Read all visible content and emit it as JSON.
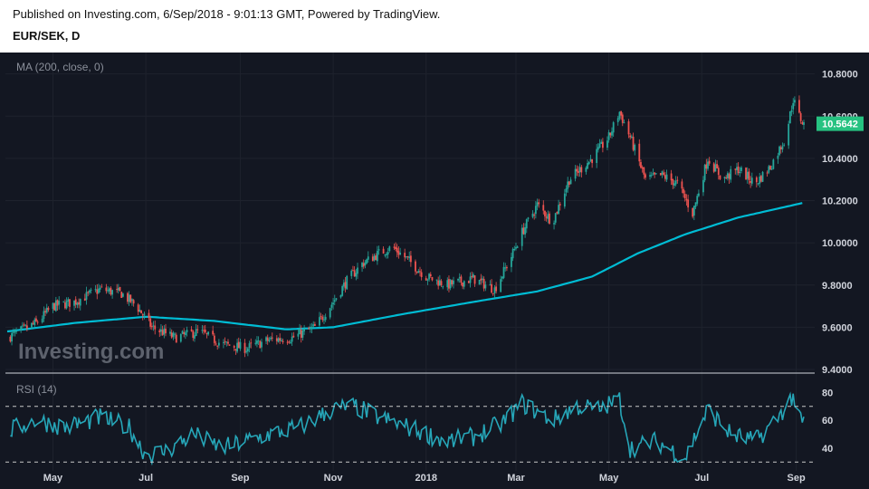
{
  "header": {
    "published": "Published on Investing.com, 6/Sep/2018 - 9:01:13 GMT, Powered by TradingView.",
    "symbol": "EUR/SEK, D"
  },
  "watermark": "Investing.com",
  "colors": {
    "background": "#131722",
    "grid": "#1e222d",
    "up": "#26a69a",
    "down": "#ef5350",
    "ma": "#00bcd4",
    "rsi": "#26a6b8",
    "price_tag": "#26c281",
    "text": "#d1d4dc"
  },
  "chart_data": [
    {
      "type": "candlestick",
      "indicator_label": "MA (200, close, 0)",
      "x_axis_labels": [
        "May",
        "Jul",
        "Sep",
        "Nov",
        "2018",
        "Mar",
        "May",
        "Jul",
        "Sep"
      ],
      "y_ticks": [
        "9.4000",
        "9.6000",
        "9.8000",
        "10.0000",
        "10.2000",
        "10.4000",
        "10.6000",
        "10.8000"
      ],
      "ylim": [
        9.4,
        10.85
      ],
      "last_price": "10.5642",
      "x_range": [
        "2017-04-01",
        "2018-09-06"
      ],
      "close_anchors": [
        [
          "2017-04-01",
          9.55
        ],
        [
          "2017-04-20",
          9.62
        ],
        [
          "2017-05-01",
          9.7
        ],
        [
          "2017-05-15",
          9.72
        ],
        [
          "2017-06-01",
          9.78
        ],
        [
          "2017-06-15",
          9.76
        ],
        [
          "2017-06-25",
          9.7
        ],
        [
          "2017-07-05",
          9.6
        ],
        [
          "2017-07-20",
          9.55
        ],
        [
          "2017-08-05",
          9.58
        ],
        [
          "2017-08-20",
          9.52
        ],
        [
          "2017-09-05",
          9.5
        ],
        [
          "2017-09-20",
          9.54
        ],
        [
          "2017-10-05",
          9.55
        ],
        [
          "2017-10-20",
          9.6
        ],
        [
          "2017-11-01",
          9.72
        ],
        [
          "2017-11-10",
          9.82
        ],
        [
          "2017-11-20",
          9.9
        ],
        [
          "2017-12-01",
          9.95
        ],
        [
          "2017-12-10",
          9.98
        ],
        [
          "2017-12-20",
          9.92
        ],
        [
          "2018-01-01",
          9.84
        ],
        [
          "2018-01-15",
          9.8
        ],
        [
          "2018-02-01",
          9.83
        ],
        [
          "2018-02-15",
          9.78
        ],
        [
          "2018-02-25",
          9.92
        ],
        [
          "2018-03-05",
          10.05
        ],
        [
          "2018-03-15",
          10.18
        ],
        [
          "2018-03-25",
          10.1
        ],
        [
          "2018-04-05",
          10.3
        ],
        [
          "2018-04-20",
          10.4
        ],
        [
          "2018-05-01",
          10.5
        ],
        [
          "2018-05-08",
          10.62
        ],
        [
          "2018-05-15",
          10.5
        ],
        [
          "2018-05-25",
          10.3
        ],
        [
          "2018-06-05",
          10.32
        ],
        [
          "2018-06-15",
          10.28
        ],
        [
          "2018-06-25",
          10.14
        ],
        [
          "2018-07-05",
          10.4
        ],
        [
          "2018-07-15",
          10.3
        ],
        [
          "2018-07-25",
          10.35
        ],
        [
          "2018-08-05",
          10.28
        ],
        [
          "2018-08-15",
          10.36
        ],
        [
          "2018-08-25",
          10.5
        ],
        [
          "2018-08-30",
          10.68
        ],
        [
          "2018-09-03",
          10.6
        ],
        [
          "2018-09-06",
          10.56
        ]
      ],
      "ma_anchors": [
        [
          "2017-04-01",
          9.58
        ],
        [
          "2017-05-15",
          9.62
        ],
        [
          "2017-07-01",
          9.65
        ],
        [
          "2017-08-15",
          9.63
        ],
        [
          "2017-10-01",
          9.59
        ],
        [
          "2017-11-01",
          9.6
        ],
        [
          "2017-12-15",
          9.66
        ],
        [
          "2018-02-01",
          9.72
        ],
        [
          "2018-03-15",
          9.77
        ],
        [
          "2018-04-20",
          9.84
        ],
        [
          "2018-05-20",
          9.95
        ],
        [
          "2018-06-20",
          10.04
        ],
        [
          "2018-07-25",
          10.12
        ],
        [
          "2018-09-06",
          10.19
        ]
      ]
    },
    {
      "type": "line",
      "indicator_label": "RSI (14)",
      "y_ticks": [
        "40",
        "60",
        "80"
      ],
      "ylim": [
        25,
        90
      ],
      "levels": [
        30,
        70
      ],
      "rsi_anchors": [
        [
          "2017-04-01",
          52
        ],
        [
          "2017-04-20",
          60
        ],
        [
          "2017-05-10",
          55
        ],
        [
          "2017-06-01",
          62
        ],
        [
          "2017-06-20",
          55
        ],
        [
          "2017-07-01",
          35
        ],
        [
          "2017-07-15",
          38
        ],
        [
          "2017-08-01",
          50
        ],
        [
          "2017-08-20",
          40
        ],
        [
          "2017-09-05",
          45
        ],
        [
          "2017-09-20",
          50
        ],
        [
          "2017-10-10",
          55
        ],
        [
          "2017-11-01",
          68
        ],
        [
          "2017-11-15",
          70
        ],
        [
          "2017-12-01",
          62
        ],
        [
          "2017-12-20",
          55
        ],
        [
          "2018-01-15",
          45
        ],
        [
          "2018-02-01",
          48
        ],
        [
          "2018-02-20",
          58
        ],
        [
          "2018-03-05",
          72
        ],
        [
          "2018-03-25",
          60
        ],
        [
          "2018-04-10",
          70
        ],
        [
          "2018-04-25",
          68
        ],
        [
          "2018-05-08",
          75
        ],
        [
          "2018-05-15",
          40
        ],
        [
          "2018-06-01",
          45
        ],
        [
          "2018-06-20",
          33
        ],
        [
          "2018-07-05",
          68
        ],
        [
          "2018-07-20",
          50
        ],
        [
          "2018-08-05",
          45
        ],
        [
          "2018-08-20",
          62
        ],
        [
          "2018-08-30",
          78
        ],
        [
          "2018-09-03",
          60
        ],
        [
          "2018-09-06",
          58
        ]
      ]
    }
  ]
}
